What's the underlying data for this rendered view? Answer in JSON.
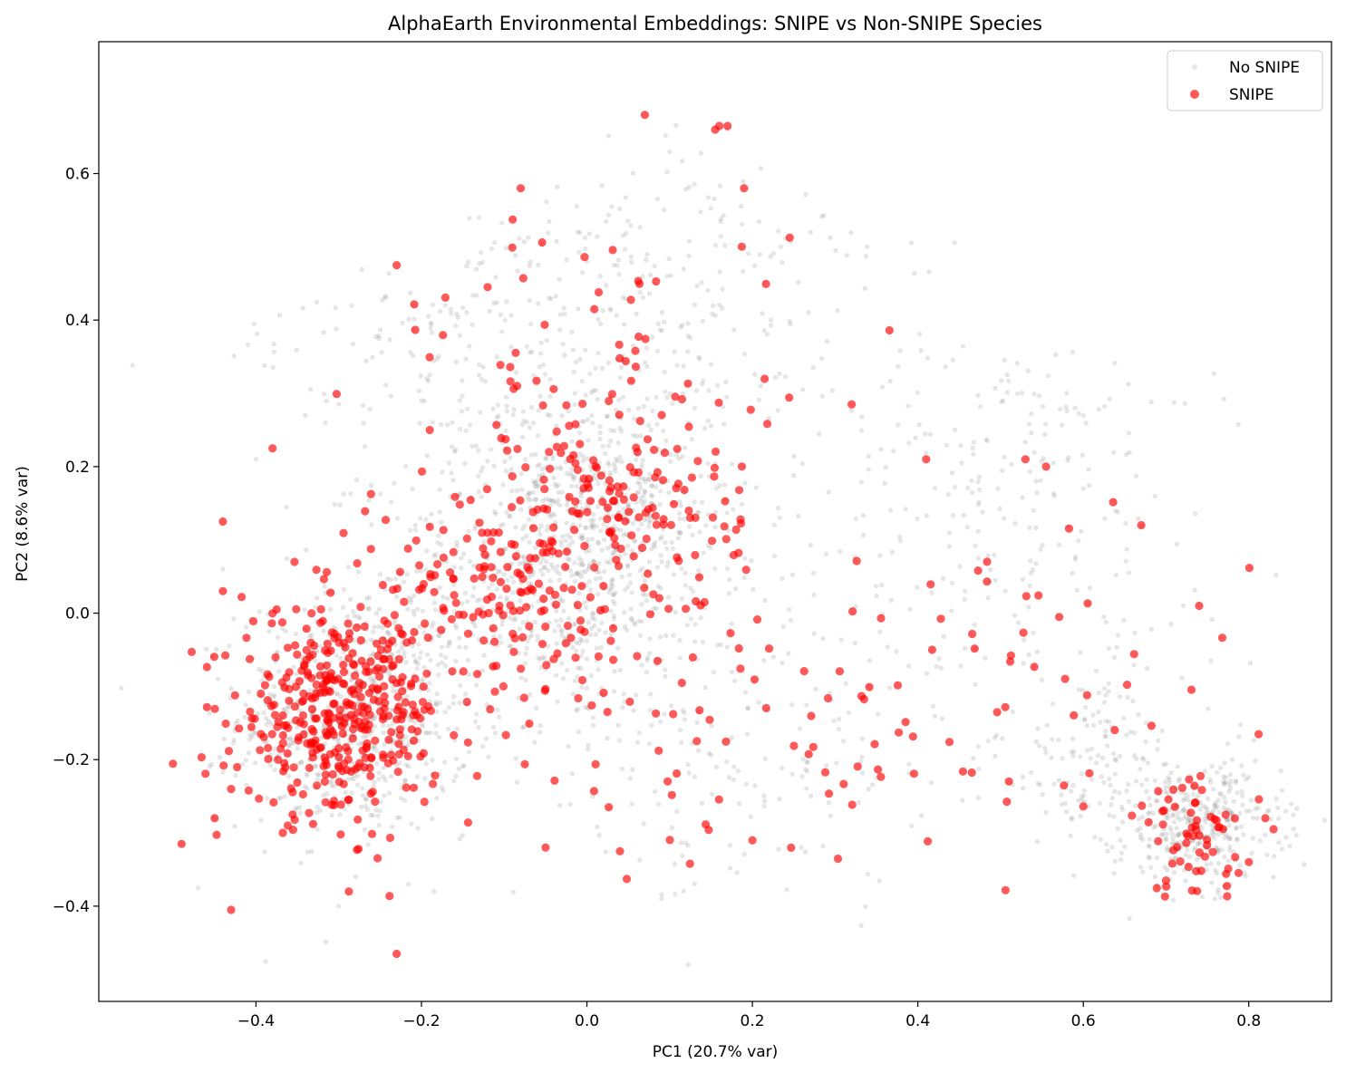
{
  "chart_data": {
    "type": "scatter",
    "title": "AlphaEarth Environmental Embeddings: SNIPE vs Non-SNIPE Species",
    "xlabel": "PC1 (20.7% var)",
    "ylabel": "PC2 (8.6% var)",
    "xlim": [
      -0.59,
      0.9
    ],
    "ylim": [
      -0.53,
      0.78
    ],
    "xticks": [
      -0.4,
      -0.2,
      0.0,
      0.2,
      0.4,
      0.6,
      0.8
    ],
    "xtick_labels": [
      "−0.4",
      "−0.2",
      "0.0",
      "0.2",
      "0.4",
      "0.6",
      "0.8"
    ],
    "yticks": [
      -0.4,
      -0.2,
      0.0,
      0.2,
      0.4,
      0.6
    ],
    "ytick_labels": [
      "−0.4",
      "−0.2",
      "0.0",
      "0.2",
      "0.4",
      "0.6"
    ],
    "grid": false,
    "legend_position": "top-right",
    "series": [
      {
        "name": "No SNIPE",
        "color": "#808080",
        "alpha": 0.2,
        "clusters": [
          {
            "cx": -0.28,
            "cy": -0.14,
            "sx": 0.07,
            "sy": 0.08,
            "n": 700
          },
          {
            "cx": -0.05,
            "cy": 0.05,
            "sx": 0.1,
            "sy": 0.1,
            "n": 550
          },
          {
            "cx": 0.03,
            "cy": 0.15,
            "sx": 0.07,
            "sy": 0.08,
            "n": 350
          },
          {
            "cx": -0.1,
            "cy": 0.35,
            "sx": 0.15,
            "sy": 0.12,
            "n": 250
          },
          {
            "cx": 0.1,
            "cy": 0.45,
            "sx": 0.12,
            "sy": 0.12,
            "n": 180
          },
          {
            "cx": 0.45,
            "cy": 0.05,
            "sx": 0.18,
            "sy": 0.18,
            "n": 250
          },
          {
            "cx": 0.74,
            "cy": -0.29,
            "sx": 0.05,
            "sy": 0.04,
            "n": 350
          },
          {
            "cx": 0.62,
            "cy": -0.2,
            "sx": 0.07,
            "sy": 0.06,
            "n": 120
          },
          {
            "cx": 0.55,
            "cy": 0.25,
            "sx": 0.1,
            "sy": 0.1,
            "n": 80
          },
          {
            "cx": 0.15,
            "cy": -0.2,
            "sx": 0.12,
            "sy": 0.1,
            "n": 150
          }
        ],
        "highlight": [
          [
            -0.375,
            0.005
          ],
          [
            -0.44,
            0.06
          ],
          [
            -0.45,
            -0.28
          ],
          [
            -0.47,
            -0.375
          ],
          [
            -0.31,
            0.005
          ],
          [
            -0.3,
            -0.4
          ],
          [
            -0.25,
            -0.27
          ],
          [
            -0.2,
            0.29
          ],
          [
            -0.4,
            0.21
          ],
          [
            -0.13,
            0.54
          ],
          [
            0.0,
            0.48
          ],
          [
            0.1,
            0.63
          ],
          [
            0.72,
            -0.27
          ],
          [
            0.74,
            -0.3
          ],
          [
            0.78,
            -0.2
          ],
          [
            0.76,
            -0.32
          ],
          [
            0.66,
            -0.12
          ],
          [
            0.6,
            0.17
          ],
          [
            0.58,
            0.3
          ],
          [
            0.59,
            0.28
          ],
          [
            0.6,
            0.27
          ],
          [
            0.54,
            0.14
          ],
          [
            0.21,
            0.31
          ],
          [
            0.09,
            -0.39
          ],
          [
            0.17,
            0.66
          ]
        ]
      },
      {
        "name": "SNIPE",
        "color": "#ff0000",
        "alpha": 0.65,
        "clusters": [
          {
            "cx": -0.3,
            "cy": -0.14,
            "sx": 0.06,
            "sy": 0.07,
            "n": 380
          },
          {
            "cx": -0.1,
            "cy": 0.03,
            "sx": 0.09,
            "sy": 0.08,
            "n": 180
          },
          {
            "cx": 0.05,
            "cy": 0.15,
            "sx": 0.07,
            "sy": 0.08,
            "n": 140
          },
          {
            "cx": 0.0,
            "cy": 0.35,
            "sx": 0.12,
            "sy": 0.1,
            "n": 50
          },
          {
            "cx": 0.74,
            "cy": -0.31,
            "sx": 0.04,
            "sy": 0.04,
            "n": 60
          },
          {
            "cx": 0.5,
            "cy": -0.1,
            "sx": 0.15,
            "sy": 0.12,
            "n": 60
          },
          {
            "cx": 0.15,
            "cy": -0.2,
            "sx": 0.1,
            "sy": 0.08,
            "n": 40
          }
        ],
        "highlight": [
          [
            -0.23,
            0.475
          ],
          [
            0.07,
            0.68
          ],
          [
            0.16,
            0.665
          ],
          [
            0.17,
            0.665
          ],
          [
            0.155,
            0.66
          ],
          [
            -0.43,
            -0.405
          ],
          [
            -0.23,
            -0.465
          ],
          [
            -0.375,
            0.005
          ],
          [
            -0.44,
            0.03
          ],
          [
            -0.44,
            0.125
          ],
          [
            -0.38,
            0.225
          ],
          [
            -0.19,
            0.25
          ],
          [
            0.555,
            0.2
          ],
          [
            0.53,
            0.21
          ],
          [
            0.67,
            0.12
          ],
          [
            0.74,
            0.01
          ],
          [
            -0.45,
            -0.28
          ],
          [
            -0.43,
            -0.24
          ],
          [
            -0.49,
            -0.315
          ],
          [
            0.83,
            -0.295
          ],
          [
            0.82,
            -0.28
          ],
          [
            0.7,
            -0.365
          ],
          [
            0.04,
            -0.325
          ],
          [
            -0.05,
            -0.32
          ],
          [
            0.2,
            -0.31
          ],
          [
            -0.08,
            0.58
          ],
          [
            0.19,
            0.58
          ],
          [
            0.32,
            0.285
          ],
          [
            0.41,
            0.21
          ],
          [
            -0.12,
            0.445
          ]
        ]
      }
    ]
  }
}
